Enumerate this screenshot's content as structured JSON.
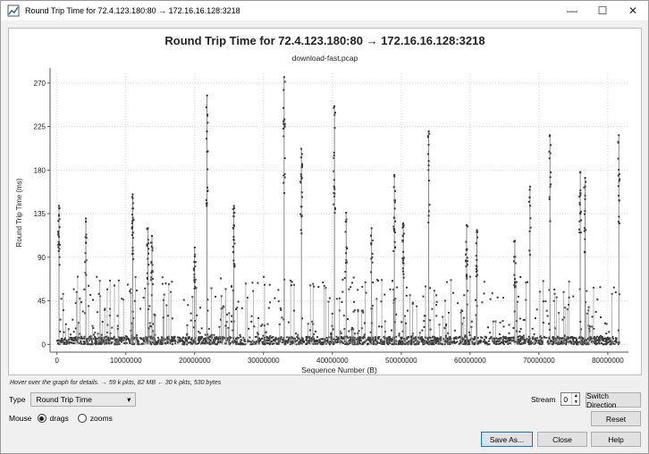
{
  "window": {
    "title": "Round Trip Time for 72.4.123.180:80 → 172.16.16.128:3218"
  },
  "controls": {
    "minimize": "—",
    "maximize": "☐",
    "close": "✕"
  },
  "chart_data": {
    "type": "scatter",
    "title": "Round Trip Time for 72.4.123.180:80 → 172.16.16.128:3218",
    "subtitle": "download-fast.pcap",
    "xlabel": "Sequence Number (B)",
    "ylabel": "Round Trip Time (ms)",
    "xlim": [
      -1000000,
      83000000
    ],
    "ylim": [
      -8,
      280
    ],
    "xticks": [
      0,
      10000000,
      20000000,
      30000000,
      40000000,
      50000000,
      60000000,
      70000000,
      80000000
    ],
    "xtick_labels": [
      "0",
      "10000000",
      "20000000",
      "30000000",
      "40000000",
      "50000000",
      "60000000",
      "70000000",
      "80000000"
    ],
    "yticks": [
      0,
      45,
      90,
      135,
      180,
      225,
      270
    ],
    "ytick_labels": [
      "0",
      "45",
      "90",
      "135",
      "180",
      "225",
      "270"
    ],
    "grid": true,
    "point_color": "#3a3a3a",
    "spikes": [
      {
        "x": 300000,
        "y": 143
      },
      {
        "x": 4200000,
        "y": 130
      },
      {
        "x": 11000000,
        "y": 155
      },
      {
        "x": 13200000,
        "y": 120
      },
      {
        "x": 13800000,
        "y": 112
      },
      {
        "x": 20000000,
        "y": 100
      },
      {
        "x": 21800000,
        "y": 257
      },
      {
        "x": 25700000,
        "y": 143
      },
      {
        "x": 33000000,
        "y": 276
      },
      {
        "x": 35500000,
        "y": 202
      },
      {
        "x": 40300000,
        "y": 246
      },
      {
        "x": 42000000,
        "y": 136
      },
      {
        "x": 45700000,
        "y": 120
      },
      {
        "x": 49000000,
        "y": 175
      },
      {
        "x": 50300000,
        "y": 125
      },
      {
        "x": 54000000,
        "y": 220
      },
      {
        "x": 59500000,
        "y": 123
      },
      {
        "x": 61000000,
        "y": 118
      },
      {
        "x": 66500000,
        "y": 107
      },
      {
        "x": 68700000,
        "y": 163
      },
      {
        "x": 71600000,
        "y": 216
      },
      {
        "x": 76000000,
        "y": 178
      },
      {
        "x": 76700000,
        "y": 172
      },
      {
        "x": 81600000,
        "y": 216
      }
    ]
  },
  "hint": "Hover over the graph for details. → 59 k pkts, 82 MB ← 30 k pkts, 530 bytes",
  "type_row": {
    "label": "Type",
    "value": "Round Trip Time"
  },
  "mouse_row": {
    "label": "Mouse",
    "drags": "drags",
    "zooms": "zooms"
  },
  "stream_row": {
    "label": "Stream",
    "value": "0"
  },
  "buttons": {
    "switch_direction": "Switch Direction",
    "reset": "Reset",
    "save_as": "Save As...",
    "close": "Close",
    "help": "Help"
  }
}
